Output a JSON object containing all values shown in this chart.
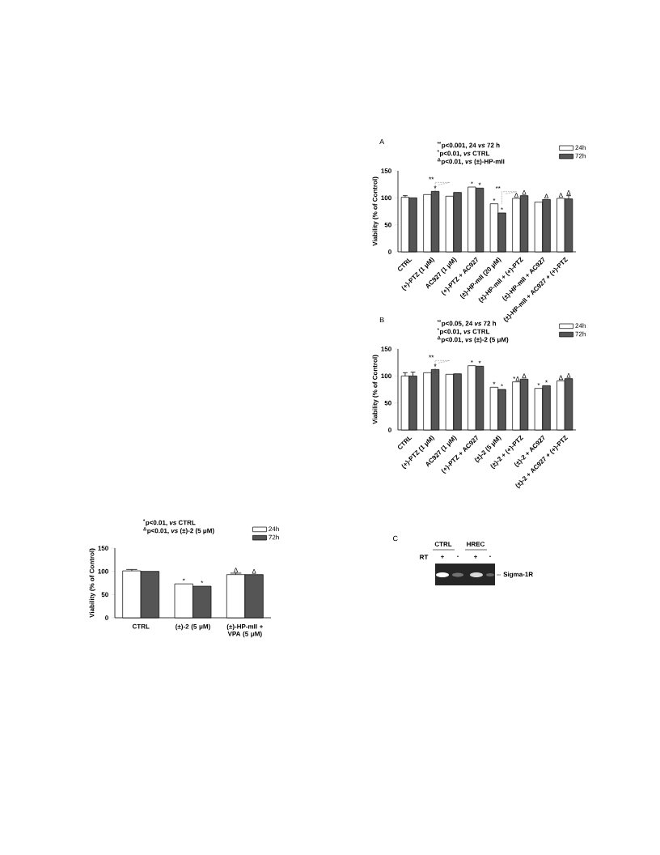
{
  "chart_data": [
    {
      "type": "bar",
      "title": "A",
      "ylabel": "Viability (% of Control)",
      "categories": [
        "CTRL",
        "(+)-PTZ (1 μM)",
        "AC927 (1 μM)",
        "(+)-PTZ + AC927",
        "(±)-HP-mII (20 μM)",
        "(±)-HP-mII + (+)-PTZ",
        "(±)-HP-mII + AC927",
        "(±)-HP-mII + AC927 + (+)-PTZ"
      ],
      "series": [
        {
          "name": "24h",
          "color": "#ffffff",
          "values": [
            101,
            106,
            103,
            120,
            89,
            99,
            92,
            99
          ],
          "errors": [
            3,
            null,
            null,
            null,
            null,
            null,
            null,
            null
          ],
          "value_labels": [
            null,
            null,
            null,
            "*",
            "*",
            "Δ",
            null,
            "Δ"
          ]
        },
        {
          "name": "72h",
          "color": "#555555",
          "values": [
            100,
            112,
            110,
            118,
            72,
            104,
            97,
            98
          ],
          "errors": [
            null,
            null,
            null,
            null,
            null,
            null,
            null,
            6
          ],
          "value_labels": [
            null,
            "*",
            null,
            "*",
            "*",
            "Δ",
            "Δ",
            "Δ"
          ]
        }
      ],
      "ylim": [
        0,
        150
      ],
      "yticks": [
        0,
        50,
        100,
        150
      ],
      "legend": "top right",
      "annotations": [
        "$^{**}$p<0.001, 24 *vs* 72 h",
        "$^{*}$p<0.01, *vs* CTRL",
        "$^{Δ}$p<0.01, *vs* (±)-HP-mII",
        {
          "text": "**",
          "x": "(+)-PTZ (1 μM)",
          "y": 106
        },
        {
          "text": "**",
          "x": "(±)-HP-mII (20 μM)",
          "y": 89
        }
      ]
    },
    {
      "type": "bar",
      "title": "B",
      "ylabel": "Viability (% of Control)",
      "categories": [
        "CTRL",
        "(+)-PTZ (1 μM)",
        "AC927 (1 μM)",
        "(+)-PTZ + AC927",
        "(±)-2 (5 μM)",
        "(±)-2 + (+)-PTZ",
        "(±)-2 + AC927",
        "(±)-2 + AC927 + (+)-PTZ"
      ],
      "series": [
        {
          "name": "24h",
          "color": "#ffffff",
          "values": [
            100,
            106,
            103,
            119,
            79,
            89,
            77,
            91
          ],
          "errors": [
            6,
            null,
            null,
            null,
            null,
            null,
            null,
            null
          ],
          "value_labels": [
            null,
            null,
            null,
            "*",
            "*",
            "*Δ",
            "*",
            "Δ"
          ]
        },
        {
          "name": "72h",
          "color": "#555555",
          "values": [
            100,
            112,
            104,
            118,
            75,
            94,
            82,
            95
          ],
          "errors": [
            7,
            null,
            null,
            null,
            null,
            null,
            null,
            null
          ],
          "value_labels": [
            null,
            "*",
            null,
            "*",
            "*",
            "Δ",
            "*",
            "Δ"
          ]
        }
      ],
      "ylim": [
        0,
        150
      ],
      "yticks": [
        0,
        50,
        100,
        150
      ],
      "legend": "top right",
      "annotations": [
        "$^{**}$p<0.05, 24 *vs* 72 h",
        "$^{*}$p<0.01, *vs* CTRL",
        "$^{Δ}$p<0.01, *vs* (±)-2 (5 μM)",
        {
          "text": "**",
          "x": "(+)-PTZ (1 μM)",
          "y": 106
        }
      ]
    },
    {
      "type": "other",
      "title": "C",
      "annotations": [
        "CTRL",
        "HREC",
        "RT",
        "+",
        "-",
        "+",
        "-",
        "Sigma-1R"
      ]
    },
    {
      "type": "bar",
      "ylabel": "Viability (% of Control)",
      "categories": [
        "CTRL",
        "(±)-2 (5 μM)",
        "(±)-HP-mII + VPA (5 μM)"
      ],
      "series": [
        {
          "name": "24h",
          "color": "#ffffff",
          "values": [
            101,
            73,
            93
          ],
          "errors": [
            3,
            null,
            3
          ],
          "value_labels": [
            null,
            "*",
            "Δ"
          ]
        },
        {
          "name": "72h",
          "color": "#555555",
          "values": [
            100,
            68,
            93
          ],
          "value_labels": [
            null,
            "*",
            "Δ"
          ]
        }
      ],
      "ylim": [
        0,
        150
      ],
      "yticks": [
        0,
        50,
        100,
        150
      ],
      "legend": "top right",
      "annotations": [
        "$^{*}$p<0.01, *vs* CTRL",
        "$^{Δ}$p<0.01, *vs* (±)-2 (5 μM)"
      ]
    }
  ]
}
